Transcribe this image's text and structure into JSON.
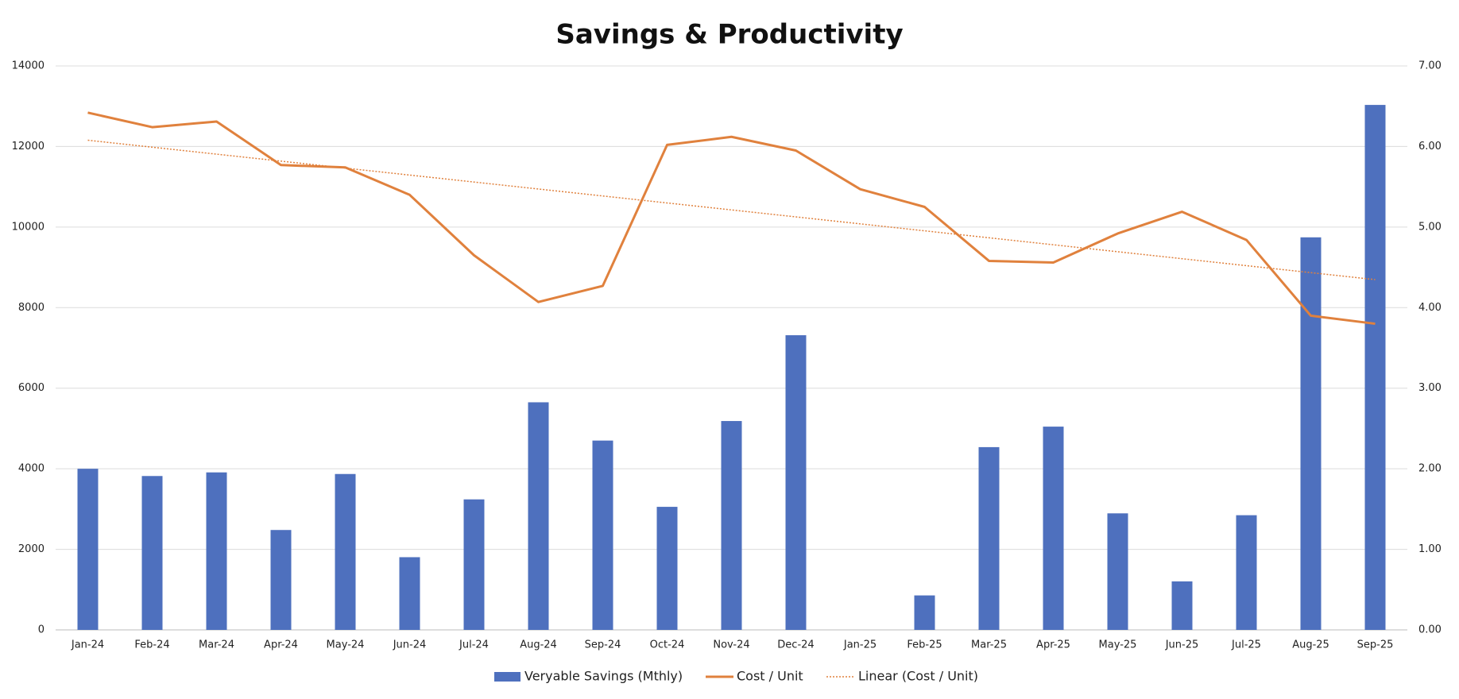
{
  "chart_data": {
    "type": "bar-line",
    "title": "Savings & Productivity",
    "categories": [
      "Jan-24",
      "Feb-24",
      "Mar-24",
      "Apr-24",
      "May-24",
      "Jun-24",
      "Jul-24",
      "Aug-24",
      "Sep-24",
      "Oct-24",
      "Nov-24",
      "Dec-24",
      "Jan-25",
      "Feb-25",
      "Mar-25",
      "Apr-25",
      "May-25",
      "Jun-25",
      "Jul-25",
      "Aug-25",
      "Sep-25"
    ],
    "series": [
      {
        "name": "Veryable Savings (Mthly)",
        "color": "#4e70be",
        "type": "bar",
        "values": [
          4000,
          3820,
          3910,
          2480,
          3870,
          1805,
          3240,
          5650,
          4700,
          3055,
          5185,
          7315,
          0,
          856,
          4537,
          5046,
          2893,
          1204,
          2847,
          9745,
          13032
        ]
      },
      {
        "name": "Cost / Unit",
        "color": "#e0813d",
        "type": "line",
        "axis": "y2",
        "values": [
          6.42,
          6.24,
          6.31,
          5.77,
          5.74,
          5.4,
          4.65,
          4.07,
          4.27,
          6.02,
          6.12,
          5.95,
          5.47,
          5.25,
          4.58,
          4.56,
          4.92,
          5.19,
          4.84,
          3.9,
          3.8
        ]
      }
    ],
    "trendline": {
      "name": "Linear (Cost / Unit)",
      "color": "#e0813d",
      "fit": "linear",
      "series": 1
    },
    "ylim": [
      0,
      14000
    ],
    "yticks": [
      0,
      2000,
      4000,
      6000,
      8000,
      10000,
      12000,
      14000
    ],
    "y2lim": [
      0,
      7
    ],
    "y2ticks": [
      {
        "value": 0,
        "label": "0.00"
      },
      {
        "value": 1,
        "label": "1.00"
      },
      {
        "value": 2,
        "label": "2.00"
      },
      {
        "value": 3,
        "label": "3.00"
      },
      {
        "value": 4,
        "label": "4.00"
      },
      {
        "value": 5,
        "label": "5.00"
      },
      {
        "value": 6,
        "label": "6.00"
      },
      {
        "value": 7,
        "label": "7.00"
      }
    ],
    "grid": true,
    "legend": "bottom"
  }
}
